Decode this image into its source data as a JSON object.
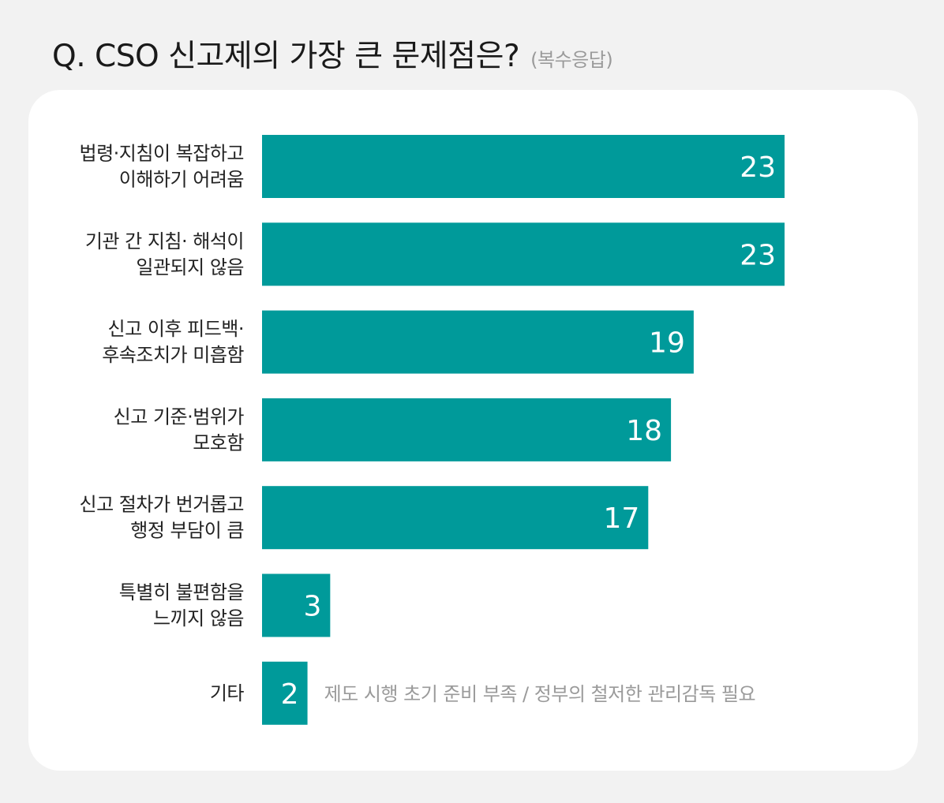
{
  "header": {
    "title": "Q. CSO 신고제의 가장 큰 문제점은?",
    "subtitle": "(복수응답)"
  },
  "chart_data": {
    "type": "bar",
    "orientation": "horizontal",
    "title": "Q. CSO 신고제의 가장 큰 문제점은?",
    "subtitle": "(복수응답)",
    "bar_color": "#009a9a",
    "categories": [
      [
        "법령·지침이 복잡하고",
        "이해하기 어려움"
      ],
      [
        "기관 간 지침· 해석이",
        "일관되지 않음"
      ],
      [
        "신고 이후 피드백·",
        "후속조치가 미흡함"
      ],
      [
        "신고 기준·범위가",
        "모호함"
      ],
      [
        "신고 절차가 번거롭고",
        "행정 부담이 큼"
      ],
      [
        "특별히 불편함을",
        "느끼지 않음"
      ],
      [
        "기타"
      ]
    ],
    "values": [
      23,
      23,
      19,
      18,
      17,
      3,
      2
    ],
    "annotations": [
      {
        "category_index": 6,
        "text": "제도 시행 초기 준비 부족 / 정부의 철저한 관리감독 필요"
      }
    ],
    "xlim": [
      0,
      23
    ],
    "grid": false,
    "legend": "none"
  }
}
